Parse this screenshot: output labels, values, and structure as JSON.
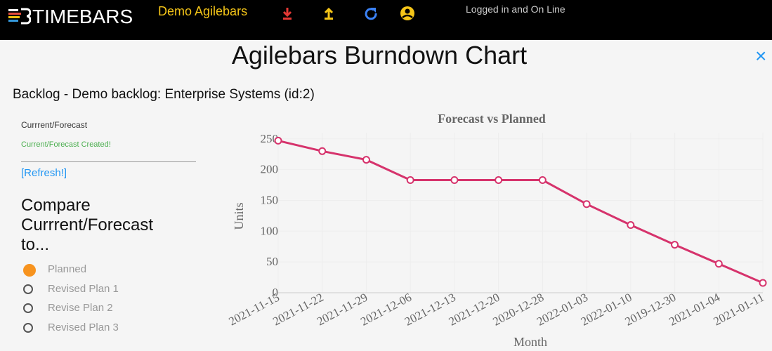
{
  "header": {
    "logo": "TIMEBARS",
    "app_name": "Demo Agilebars",
    "status": "Logged in and On Line"
  },
  "page": {
    "title": "Agilebars Burndown Chart",
    "close": "×",
    "backlog": "Backlog - Demo backlog: Enterprise Systems (id:2)"
  },
  "panel": {
    "heading": "Currrent/Forecast",
    "message": "Current/Forecast Created!",
    "refresh": "[Refresh!]",
    "compare": "Compare Currrent/Forecast to...",
    "options": [
      {
        "label": "Planned",
        "checked": true
      },
      {
        "label": "Revised Plan 1",
        "checked": false
      },
      {
        "label": "Revise Plan 2",
        "checked": false
      },
      {
        "label": "Revised Plan 3",
        "checked": false
      }
    ]
  },
  "chart_data": {
    "type": "line",
    "title": "Forecast vs Planned",
    "x_label": "Month",
    "y_label": "Units",
    "categories": [
      "2021-11-15",
      "2021-11-22",
      "2021-11-29",
      "2021-12-06",
      "2021-12-13",
      "2021-12-20",
      "2020-12-28",
      "2022-01-03",
      "2022-01-10",
      "2019-12-30",
      "2021-01-04",
      "2021-01-11"
    ],
    "values": [
      247,
      230,
      216,
      183,
      183,
      183,
      183,
      144,
      110,
      78,
      47,
      16
    ],
    "color": "#d6336c",
    "ylim": [
      0,
      260
    ],
    "yticks": [
      0,
      50,
      100,
      150,
      200,
      250
    ],
    "grid": true
  }
}
